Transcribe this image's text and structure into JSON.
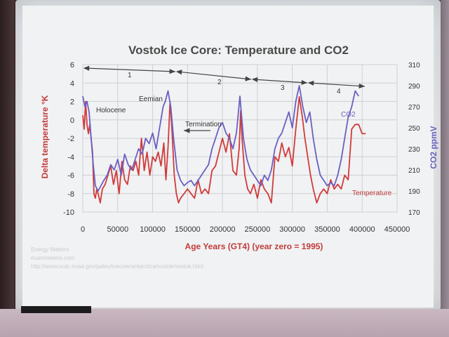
{
  "chart_data": {
    "type": "line",
    "title": "Vostok Ice Core: Temperature and CO2",
    "xlabel": "Age Years (GT4) (year zero = 1995)",
    "ylabel": "Delta temperature °K",
    "ylabel_right": "CO2 ppmV",
    "xlim": [
      0,
      450000
    ],
    "ylim": [
      -10,
      6
    ],
    "ylim_right": [
      170,
      310
    ],
    "x_ticks": [
      "0",
      "50000",
      "100000",
      "150000",
      "200000",
      "250000",
      "300000",
      "350000",
      "400000",
      "450000"
    ],
    "y_ticks": [
      "6",
      "4",
      "2",
      "0",
      "-2",
      "-4",
      "-6",
      "-8",
      "-10"
    ],
    "y_right_ticks": [
      "310",
      "290",
      "270",
      "250",
      "230",
      "210",
      "190",
      "170"
    ],
    "grid": true,
    "series": [
      {
        "name": "Temperature",
        "color": "#d23a3a",
        "axis": "left",
        "x": [
          0,
          2000,
          4000,
          6000,
          8000,
          10000,
          12000,
          14000,
          16000,
          18000,
          20000,
          22000,
          25000,
          28000,
          32000,
          36000,
          40000,
          44000,
          48000,
          52000,
          56000,
          60000,
          64000,
          68000,
          72000,
          76000,
          80000,
          84000,
          88000,
          92000,
          96000,
          100000,
          104000,
          108000,
          112000,
          116000,
          119000,
          122000,
          125000,
          128000,
          131000,
          134000,
          137000,
          140000,
          145000,
          150000,
          155000,
          160000,
          165000,
          170000,
          175000,
          180000,
          185000,
          190000,
          195000,
          200000,
          205000,
          210000,
          215000,
          220000,
          224000,
          226000,
          228000,
          232000,
          236000,
          240000,
          245000,
          250000,
          255000,
          260000,
          265000,
          270000,
          275000,
          280000,
          285000,
          290000,
          295000,
          300000,
          305000,
          310000,
          314000,
          318000,
          322000,
          326000,
          330000,
          335000,
          340000,
          345000,
          350000,
          355000,
          360000,
          365000,
          370000,
          375000,
          380000,
          385000,
          390000,
          395000,
          400000,
          405000
        ],
        "y": [
          0.5,
          -1.0,
          2.0,
          -0.5,
          -1.5,
          -0.5,
          -2.0,
          -3.5,
          -8.0,
          -8.5,
          -7.5,
          -8.0,
          -9.0,
          -7.5,
          -7.0,
          -6.0,
          -5.0,
          -7.0,
          -5.5,
          -8.0,
          -4.5,
          -6.5,
          -7.0,
          -5.0,
          -5.5,
          -4.5,
          -6.0,
          -2.0,
          -5.5,
          -3.5,
          -6.0,
          -4.0,
          -4.5,
          -3.5,
          -5.0,
          -2.5,
          -6.5,
          -3.0,
          2.0,
          -1.5,
          -6.0,
          -8.0,
          -9.0,
          -8.5,
          -8.0,
          -7.5,
          -8.0,
          -8.5,
          -6.5,
          -8.0,
          -7.5,
          -8.0,
          -5.5,
          -5.0,
          -3.5,
          -2.0,
          -3.5,
          -1.5,
          -5.5,
          -6.0,
          -3.0,
          1.0,
          -2.0,
          -6.0,
          -7.5,
          -8.0,
          -7.0,
          -8.5,
          -6.5,
          -7.5,
          -8.0,
          -9.0,
          -4.0,
          -4.5,
          -2.5,
          -4.0,
          -3.0,
          -5.0,
          -1.0,
          2.5,
          0.5,
          -2.0,
          -4.0,
          -6.0,
          -7.5,
          -9.0,
          -8.0,
          -7.5,
          -8.0,
          -6.5,
          -7.5,
          -7.0,
          -7.5,
          -6.0,
          -6.5,
          -1.0,
          -0.5,
          -0.5,
          -1.5,
          -1.5
        ]
      },
      {
        "name": "CO2",
        "color": "#6a5fc2",
        "axis": "right",
        "x": [
          0,
          3000,
          6000,
          9000,
          12000,
          15000,
          18000,
          22000,
          26000,
          30000,
          35000,
          40000,
          45000,
          50000,
          55000,
          60000,
          65000,
          70000,
          75000,
          80000,
          85000,
          90000,
          95000,
          100000,
          105000,
          110000,
          115000,
          118000,
          122000,
          126000,
          130000,
          135000,
          140000,
          145000,
          150000,
          155000,
          160000,
          165000,
          170000,
          175000,
          180000,
          185000,
          190000,
          195000,
          200000,
          205000,
          210000,
          215000,
          220000,
          225000,
          230000,
          235000,
          240000,
          245000,
          250000,
          255000,
          260000,
          265000,
          270000,
          275000,
          280000,
          285000,
          290000,
          295000,
          300000,
          305000,
          310000,
          315000,
          320000,
          325000,
          330000,
          335000,
          340000,
          345000,
          350000,
          355000,
          360000,
          365000,
          370000,
          375000,
          380000,
          385000,
          390000,
          395000
        ],
        "y": [
          280,
          270,
          275,
          265,
          240,
          215,
          195,
          190,
          195,
          200,
          205,
          215,
          210,
          220,
          205,
          225,
          215,
          210,
          220,
          230,
          225,
          240,
          235,
          245,
          230,
          250,
          270,
          275,
          285,
          270,
          240,
          210,
          200,
          195,
          198,
          200,
          195,
          200,
          205,
          210,
          215,
          230,
          240,
          250,
          255,
          245,
          240,
          230,
          245,
          280,
          240,
          220,
          210,
          205,
          200,
          195,
          205,
          200,
          210,
          230,
          240,
          245,
          255,
          265,
          250,
          275,
          290,
          270,
          255,
          265,
          240,
          220,
          205,
          200,
          195,
          198,
          195,
          205,
          220,
          240,
          260,
          270,
          285,
          280
        ]
      }
    ],
    "annotations": {
      "holocene": "Holocene",
      "eemian": "Eemian",
      "termination": "Termination",
      "co2_label": "CO2",
      "temperature_label": "Temperature",
      "period_1": "1",
      "period_2": "2",
      "period_3": "3",
      "period_4": "4"
    }
  },
  "credits": {
    "line1": "Energy Matters",
    "line2": "euanmearns.com",
    "line3": "http://www.ncdc.noaa.gov/paleo/icecore/antarctica/vostok/vostok.html"
  }
}
